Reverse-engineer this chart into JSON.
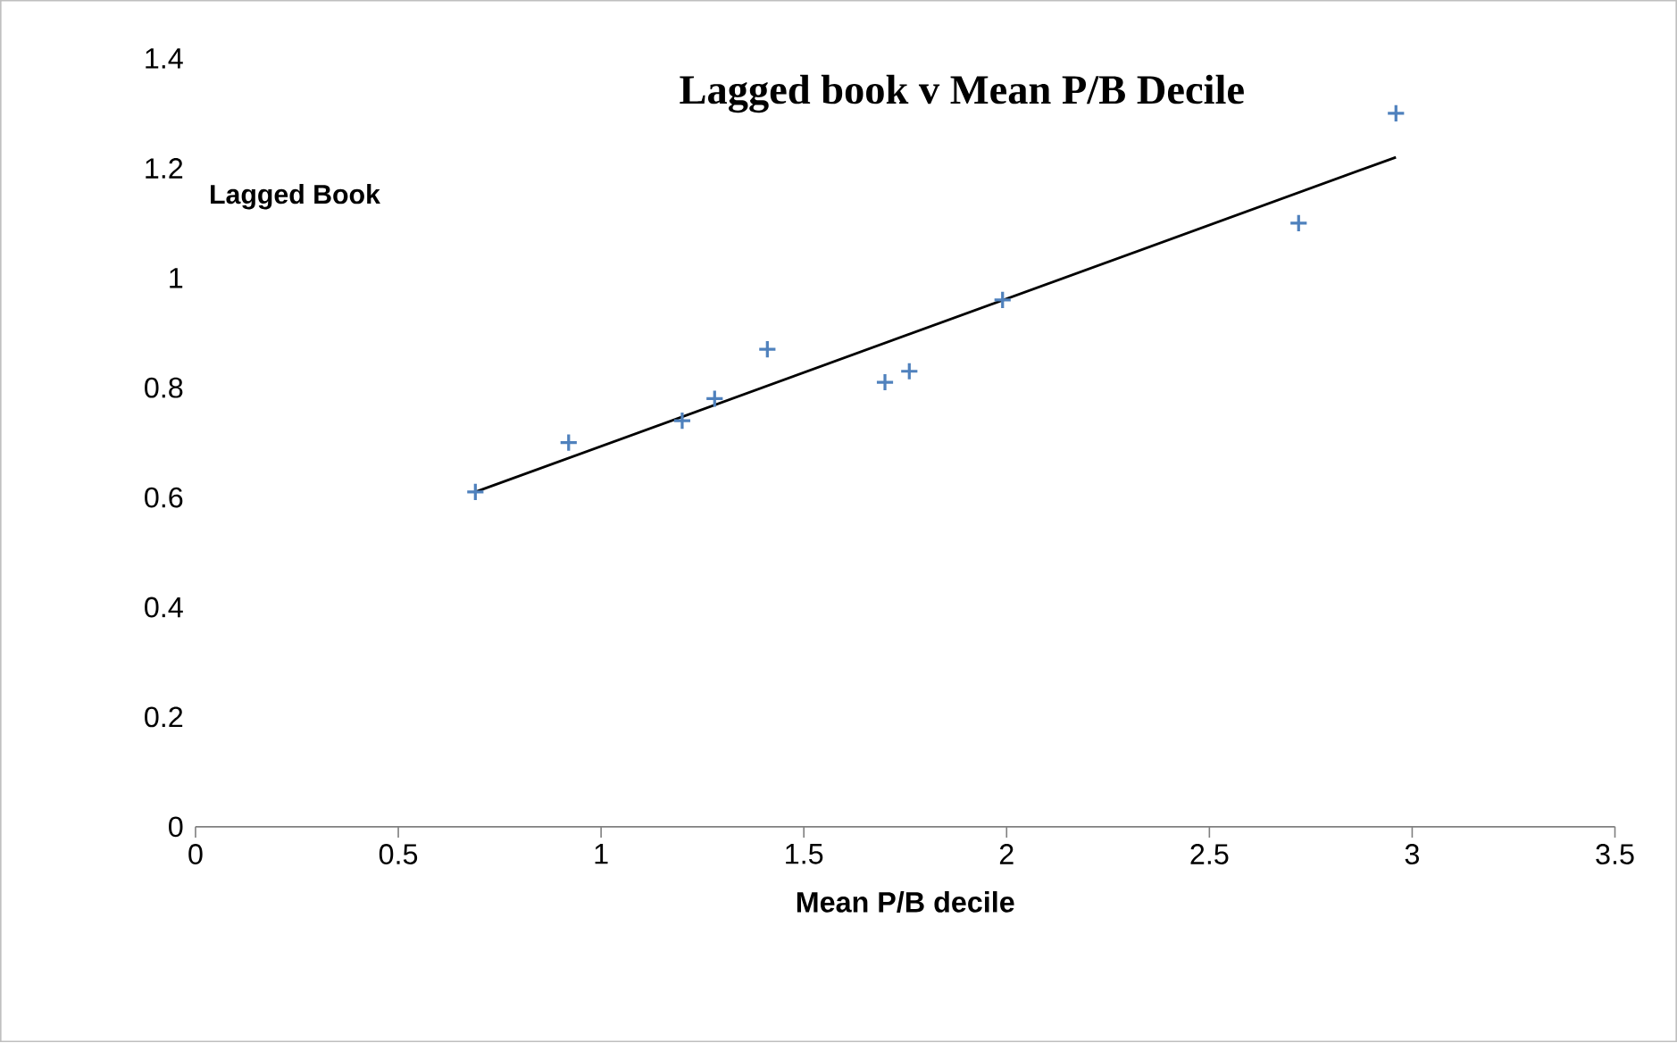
{
  "chart_data": {
    "type": "scatter",
    "title": "Lagged book v Mean P/B Decile",
    "xlabel": "Mean P/B decile",
    "ylabel": "Lagged Book",
    "xlim": [
      0,
      3.5
    ],
    "ylim": [
      0,
      1.4
    ],
    "xticks": [
      0,
      0.5,
      1,
      1.5,
      2,
      2.5,
      3,
      3.5
    ],
    "yticks": [
      0,
      0.2,
      0.4,
      0.6,
      0.8,
      1,
      1.2,
      1.4
    ],
    "grid": false,
    "series": [
      {
        "color": "#4f81bd",
        "marker": "cross",
        "x": [
          0.69,
          0.92,
          1.2,
          1.28,
          1.41,
          1.7,
          1.76,
          1.99,
          2.72,
          2.96
        ],
        "values": [
          0.61,
          0.7,
          0.74,
          0.78,
          0.87,
          0.81,
          0.83,
          0.96,
          1.1,
          1.3
        ]
      },
      {
        "type": "line",
        "color": "#000000",
        "x": [
          0.69,
          2.96
        ],
        "values": [
          0.61,
          1.22
        ]
      }
    ]
  }
}
